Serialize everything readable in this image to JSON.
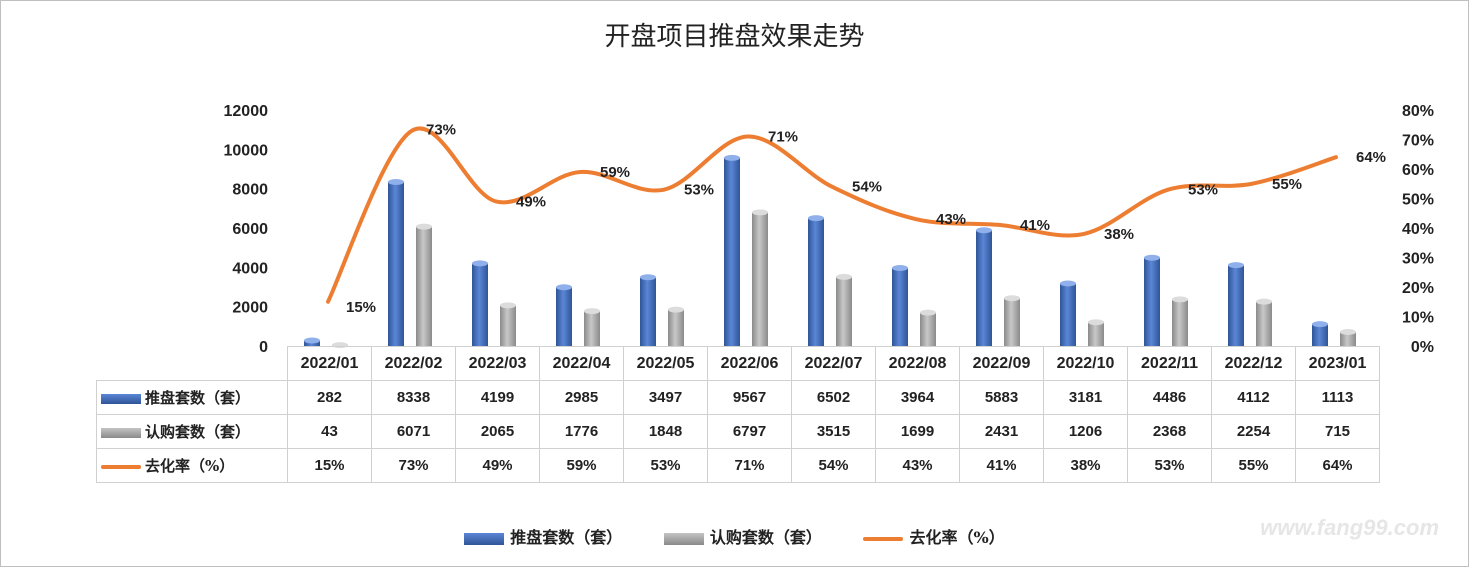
{
  "chart_data": {
    "type": "bar",
    "title": "开盘项目推盘效果走势",
    "categories": [
      "2022/01",
      "2022/02",
      "2022/03",
      "2022/04",
      "2022/05",
      "2022/06",
      "2022/07",
      "2022/08",
      "2022/09",
      "2022/10",
      "2022/11",
      "2022/12",
      "2023/01"
    ],
    "series": [
      {
        "name": "推盘套数（套）",
        "kind": "bar",
        "axis": "left",
        "color": "#4472c4",
        "values": [
          282,
          8338,
          4199,
          2985,
          3497,
          9567,
          6502,
          3964,
          5883,
          3181,
          4486,
          4112,
          1113
        ]
      },
      {
        "name": "认购套数（套）",
        "kind": "bar",
        "axis": "left",
        "color": "#a5a5a5",
        "values": [
          43,
          6071,
          2065,
          1776,
          1848,
          6797,
          3515,
          1699,
          2431,
          1206,
          2368,
          2254,
          715
        ]
      },
      {
        "name": "去化率（%）",
        "kind": "line",
        "axis": "right",
        "color": "#ed7d31",
        "values": [
          15,
          73,
          49,
          59,
          53,
          71,
          54,
          43,
          41,
          38,
          53,
          55,
          64
        ]
      }
    ],
    "y_left": {
      "min": 0,
      "max": 12000,
      "ticks": [
        "0",
        "2000",
        "4000",
        "6000",
        "8000",
        "10000",
        "12000"
      ]
    },
    "y_right": {
      "min": 0,
      "max": 80,
      "ticks": [
        "0%",
        "10%",
        "20%",
        "30%",
        "40%",
        "50%",
        "60%",
        "70%",
        "80%"
      ]
    },
    "table_rows": [
      {
        "label": "推盘套数（套）",
        "cells": [
          "282",
          "8338",
          "4199",
          "2985",
          "3497",
          "9567",
          "6502",
          "3964",
          "5883",
          "3181",
          "4486",
          "4112",
          "1113"
        ]
      },
      {
        "label": "认购套数（套）",
        "cells": [
          "43",
          "6071",
          "2065",
          "1776",
          "1848",
          "6797",
          "3515",
          "1699",
          "2431",
          "1206",
          "2368",
          "2254",
          "715"
        ]
      },
      {
        "label": "去化率（%）",
        "cells": [
          "15%",
          "73%",
          "49%",
          "59%",
          "53%",
          "71%",
          "54%",
          "43%",
          "41%",
          "38%",
          "53%",
          "55%",
          "64%"
        ]
      }
    ],
    "line_labels": [
      "15%",
      "73%",
      "49%",
      "59%",
      "53%",
      "71%",
      "54%",
      "43%",
      "41%",
      "38%",
      "53%",
      "55%",
      "64%"
    ],
    "legend": {
      "position": "bottom",
      "items": [
        "推盘套数（套）",
        "认购套数（套）",
        "去化率（%）"
      ]
    }
  },
  "watermark": "www.fang99.com"
}
